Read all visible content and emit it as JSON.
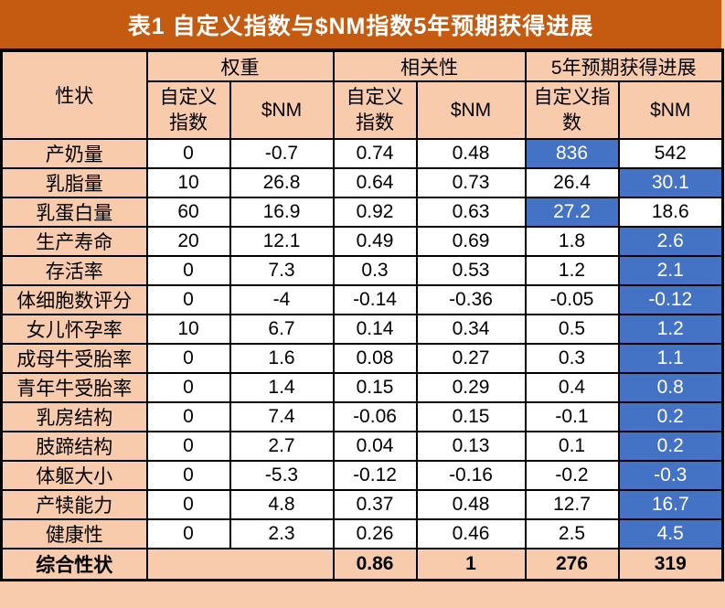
{
  "title_bar": {
    "text": "表1 自定义指数与$NM指数5年预期获得进展"
  },
  "colors": {
    "title_bg": "#C55A11",
    "header_bg": "#F8CBAD",
    "highlight_bg": "#4472C4",
    "highlight_text": "#FFFFFF",
    "border": "#000000",
    "cell_bg": "#FFFFFF"
  },
  "chart_data": {
    "type": "table",
    "title": "表1 自定义指数与$NM指数5年预期获得进展",
    "header": {
      "trait": "性状",
      "groups": [
        {
          "label": "权重"
        },
        {
          "label": "相关性"
        },
        {
          "label": "5年预期获得进展"
        }
      ],
      "sub": {
        "weight_custom": "自定义\n指数",
        "weight_nm": "$NM",
        "corr_custom": "自定义\n指数",
        "corr_nm": "$NM",
        "gain_custom": "自定义指\n数",
        "gain_nm": "$NM"
      }
    },
    "rows": [
      {
        "trait": "产奶量",
        "weight_custom": "0",
        "weight_nm": "-0.7",
        "corr_custom": "0.74",
        "corr_nm": "0.48",
        "gain_custom": "836",
        "gain_nm": "542",
        "highlight": "gain_custom"
      },
      {
        "trait": "乳脂量",
        "weight_custom": "10",
        "weight_nm": "26.8",
        "corr_custom": "0.64",
        "corr_nm": "0.73",
        "gain_custom": "26.4",
        "gain_nm": "30.1",
        "highlight": "gain_nm"
      },
      {
        "trait": "乳蛋白量",
        "weight_custom": "60",
        "weight_nm": "16.9",
        "corr_custom": "0.92",
        "corr_nm": "0.63",
        "gain_custom": "27.2",
        "gain_nm": "18.6",
        "highlight": "gain_custom"
      },
      {
        "trait": "生产寿命",
        "weight_custom": "20",
        "weight_nm": "12.1",
        "corr_custom": "0.49",
        "corr_nm": "0.69",
        "gain_custom": "1.8",
        "gain_nm": "2.6",
        "highlight": "gain_nm"
      },
      {
        "trait": "存活率",
        "weight_custom": "0",
        "weight_nm": "7.3",
        "corr_custom": "0.3",
        "corr_nm": "0.53",
        "gain_custom": "1.2",
        "gain_nm": "2.1",
        "highlight": "gain_nm"
      },
      {
        "trait": "体细胞数评分",
        "weight_custom": "0",
        "weight_nm": "-4",
        "corr_custom": "-0.14",
        "corr_nm": "-0.36",
        "gain_custom": "-0.05",
        "gain_nm": "-0.12",
        "highlight": "gain_nm"
      },
      {
        "trait": "女儿怀孕率",
        "weight_custom": "10",
        "weight_nm": "6.7",
        "corr_custom": "0.14",
        "corr_nm": "0.34",
        "gain_custom": "0.5",
        "gain_nm": "1.2",
        "highlight": "gain_nm"
      },
      {
        "trait": "成母牛受胎率",
        "weight_custom": "0",
        "weight_nm": "1.6",
        "corr_custom": "0.08",
        "corr_nm": "0.27",
        "gain_custom": "0.3",
        "gain_nm": "1.1",
        "highlight": "gain_nm"
      },
      {
        "trait": "青年牛受胎率",
        "weight_custom": "0",
        "weight_nm": "1.4",
        "corr_custom": "0.15",
        "corr_nm": "0.29",
        "gain_custom": "0.4",
        "gain_nm": "0.8",
        "highlight": "gain_nm"
      },
      {
        "trait": "乳房结构",
        "weight_custom": "0",
        "weight_nm": "7.4",
        "corr_custom": "-0.06",
        "corr_nm": "0.15",
        "gain_custom": "-0.1",
        "gain_nm": "0.2",
        "highlight": "gain_nm"
      },
      {
        "trait": "肢蹄结构",
        "weight_custom": "0",
        "weight_nm": "2.7",
        "corr_custom": "0.04",
        "corr_nm": "0.13",
        "gain_custom": "0.1",
        "gain_nm": "0.2",
        "highlight": "gain_nm"
      },
      {
        "trait": "体躯大小",
        "weight_custom": "0",
        "weight_nm": "-5.3",
        "corr_custom": "-0.12",
        "corr_nm": "-0.16",
        "gain_custom": "-0.2",
        "gain_nm": "-0.3",
        "highlight": "gain_nm"
      },
      {
        "trait": "产犊能力",
        "weight_custom": "0",
        "weight_nm": "4.8",
        "corr_custom": "0.37",
        "corr_nm": "0.48",
        "gain_custom": "12.7",
        "gain_nm": "16.7",
        "highlight": "gain_nm"
      },
      {
        "trait": "健康性",
        "weight_custom": "0",
        "weight_nm": "2.3",
        "corr_custom": "0.26",
        "corr_nm": "0.46",
        "gain_custom": "2.5",
        "gain_nm": "4.5",
        "highlight": "gain_nm"
      }
    ],
    "total": {
      "label": "综合性状",
      "weight_merged": "",
      "corr_custom": "0.86",
      "corr_nm": "1",
      "gain_custom": "276",
      "gain_nm": "319"
    }
  }
}
